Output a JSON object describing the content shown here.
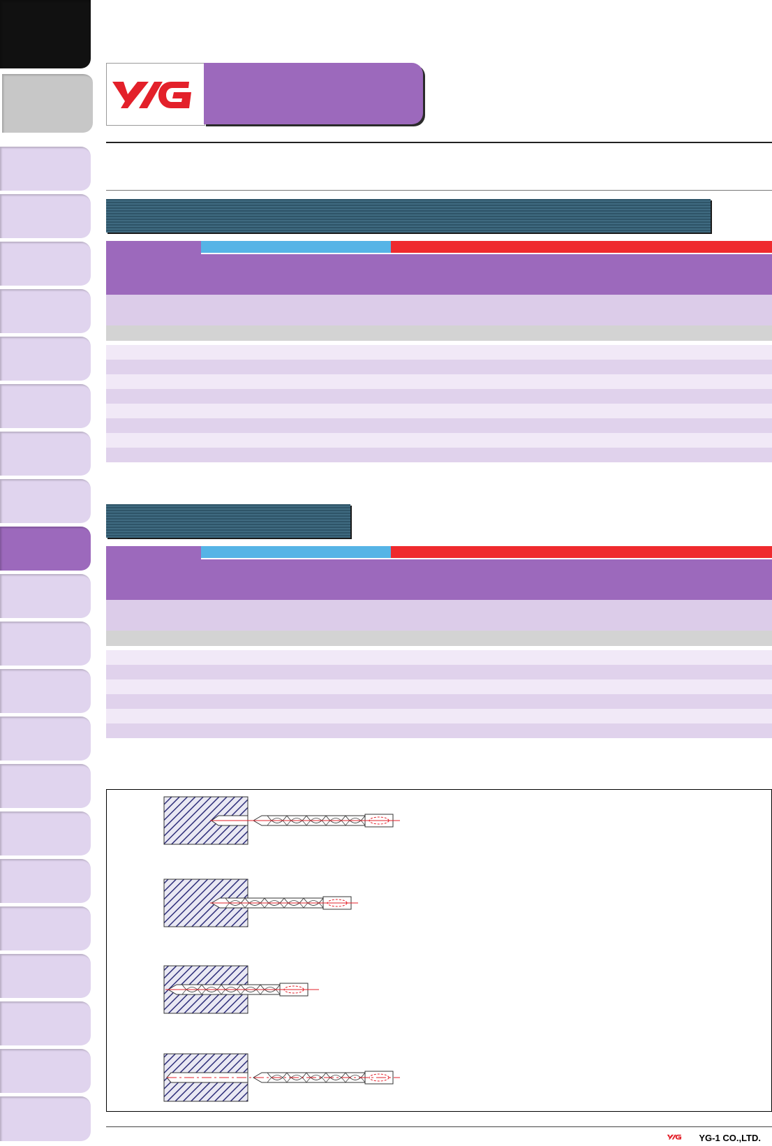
{
  "brand": {
    "logo_text": "YG",
    "footer_company": "YG-1 CO.,LTD."
  },
  "colors": {
    "purple": "#9c69bc",
    "light_purple": "#e0d4ee",
    "blue": "#56b4e6",
    "red": "#ef2a2e",
    "dark_bar": "#2e5468"
  },
  "table1": {
    "data_rows": 8
  },
  "table2": {
    "data_rows": 6
  },
  "diagram": {
    "steps": 4,
    "icons": [
      "workpiece-block-icon",
      "twist-drill-icon"
    ]
  }
}
